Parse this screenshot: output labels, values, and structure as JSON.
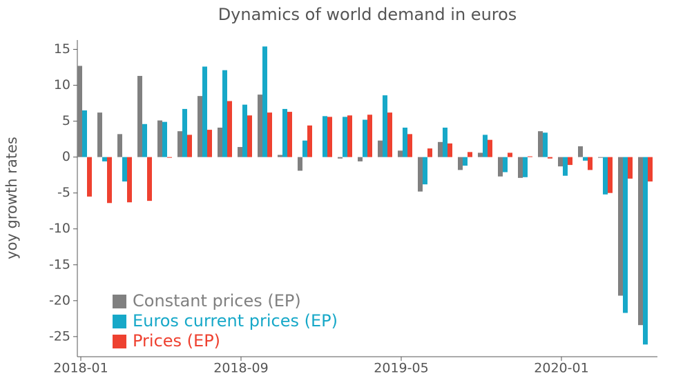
{
  "chart_data": {
    "type": "bar",
    "title": "Dynamics of world demand in euros",
    "y_label": "yoy growth rates",
    "categories": [
      "2018-01",
      null,
      null,
      null,
      null,
      null,
      null,
      null,
      "2018-09",
      null,
      null,
      null,
      null,
      null,
      null,
      null,
      "2019-05",
      null,
      null,
      null,
      null,
      null,
      null,
      null,
      "2020-01",
      null,
      null,
      null,
      null
    ],
    "series": [
      {
        "name": "Constant prices (EP)",
        "color": "#808080",
        "values": [
          12.7,
          6.2,
          3.2,
          11.3,
          5.1,
          3.6,
          8.5,
          4.1,
          1.4,
          8.7,
          0.3,
          -1.9,
          0.0,
          -0.2,
          -0.6,
          2.3,
          0.9,
          -4.8,
          2.1,
          -1.8,
          0.6,
          -2.7,
          -2.9,
          3.6,
          -1.3,
          1.5,
          -0.1,
          -19.3,
          -23.4
        ]
      },
      {
        "name": "Euros current prices (EP)",
        "color": "#17a8c8",
        "values": [
          6.5,
          -0.6,
          -3.4,
          4.6,
          4.9,
          6.7,
          12.6,
          12.1,
          7.3,
          15.4,
          6.7,
          2.3,
          5.7,
          5.6,
          5.2,
          8.6,
          4.1,
          -3.8,
          4.1,
          -1.2,
          3.1,
          -2.1,
          -2.8,
          3.4,
          -2.6,
          -0.5,
          -5.2,
          -21.7,
          -26.1
        ]
      },
      {
        "name": "Prices (EP)",
        "color": "#ee4130",
        "values": [
          -5.5,
          -6.4,
          -6.3,
          -6.1,
          -0.1,
          3.1,
          3.8,
          7.8,
          5.8,
          6.2,
          6.3,
          4.4,
          5.6,
          5.8,
          5.9,
          6.2,
          3.2,
          1.2,
          1.9,
          0.7,
          2.4,
          0.6,
          0.1,
          -0.2,
          -1.1,
          -1.8,
          -5.0,
          -3.0,
          -3.4
        ]
      }
    ],
    "ylim": [
      -27.8,
      16.3
    ],
    "yticks": [
      -25,
      -20,
      -15,
      -10,
      -5,
      0,
      5,
      10,
      15
    ],
    "grid": false,
    "legend": "lower left"
  }
}
